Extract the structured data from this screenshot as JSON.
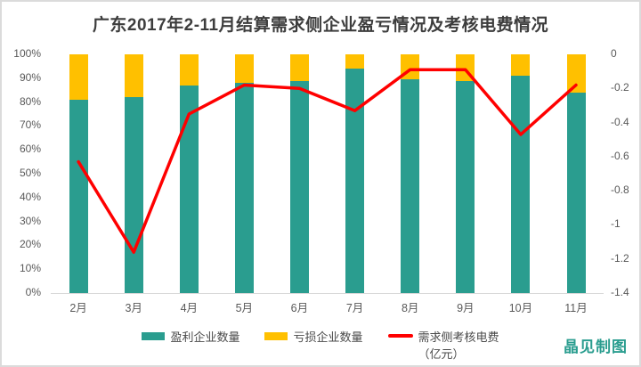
{
  "title": "广东2017年2-11月结算需求侧企业盈亏情况及考核电费情况",
  "watermark": "晶见制图",
  "colors": {
    "profit_bar": "#2a9d8f",
    "loss_bar": "#ffc000",
    "fee_line": "#ff0000",
    "axis_text": "#595959",
    "title_text": "#3d3d3d",
    "border": "#dbdbdb"
  },
  "chart_data": {
    "type": "combo: 100% stacked bar + line",
    "categories": [
      "2月",
      "3月",
      "4月",
      "5月",
      "6月",
      "7月",
      "8月",
      "9月",
      "10月",
      "11月"
    ],
    "series": [
      {
        "name": "盈利企业数量",
        "type": "bar",
        "unit": "%",
        "values": [
          81,
          82,
          87,
          88,
          89,
          94,
          89.5,
          89,
          91,
          84
        ]
      },
      {
        "name": "亏损企业数量",
        "type": "bar",
        "unit": "%",
        "values": [
          19,
          18,
          13,
          12,
          11,
          6,
          10.5,
          11,
          9,
          16
        ]
      },
      {
        "name": "需求侧考核电费",
        "type": "line",
        "unit": "亿元",
        "values": [
          -0.63,
          -1.16,
          -0.35,
          -0.18,
          -0.2,
          -0.33,
          -0.09,
          -0.09,
          -0.47,
          -0.18
        ]
      }
    ],
    "y_left": {
      "ticks": [
        "100%",
        "90%",
        "80%",
        "70%",
        "60%",
        "50%",
        "40%",
        "30%",
        "20%",
        "10%",
        "0%"
      ],
      "min": 0,
      "max": 100
    },
    "y_right": {
      "ticks": [
        "0",
        "-0.2",
        "-0.4",
        "-0.6",
        "-0.8",
        "-1",
        "-1.2",
        "-1.4"
      ],
      "min": -1.4,
      "max": 0
    },
    "grid": false,
    "legend_position": "bottom-center",
    "legend": [
      {
        "label": "盈利企业数量",
        "marker": "bar",
        "color": "#2a9d8f"
      },
      {
        "label": "亏损企业数量",
        "marker": "bar",
        "color": "#ffc000"
      },
      {
        "label": "需求侧考核电费",
        "sublabel": "（亿元）",
        "marker": "line",
        "color": "#ff0000"
      }
    ]
  }
}
